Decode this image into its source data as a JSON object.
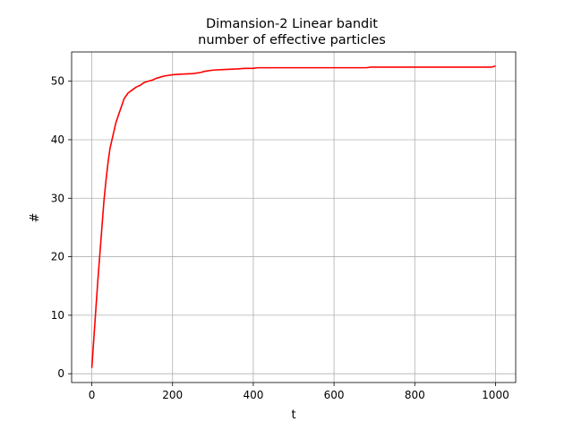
{
  "chart_data": {
    "type": "line",
    "title": "Dimansion-2 Linear bandit",
    "subtitle": "number of effective particles",
    "xlabel": "t",
    "ylabel": "#",
    "xlim": [
      -50,
      1050
    ],
    "ylim": [
      -1.5,
      55
    ],
    "xticks": [
      0,
      200,
      400,
      600,
      800,
      1000
    ],
    "yticks": [
      0,
      10,
      20,
      30,
      40,
      50
    ],
    "grid": true,
    "series": [
      {
        "color": "#ff0000",
        "x": [
          0,
          5,
          10,
          15,
          20,
          25,
          30,
          35,
          40,
          45,
          50,
          60,
          70,
          80,
          90,
          100,
          110,
          120,
          130,
          140,
          150,
          160,
          170,
          180,
          190,
          200,
          220,
          250,
          270,
          280,
          300,
          330,
          360,
          380,
          400,
          410,
          450,
          500,
          550,
          600,
          650,
          680,
          690,
          750,
          800,
          850,
          900,
          950,
          990,
          1000
        ],
        "y": [
          1,
          6,
          11,
          16,
          20.5,
          25,
          29.5,
          33,
          36,
          38.5,
          40,
          43,
          45,
          47,
          48,
          48.5,
          49,
          49.3,
          49.8,
          50,
          50.2,
          50.5,
          50.7,
          50.9,
          51,
          51.1,
          51.2,
          51.3,
          51.5,
          51.7,
          51.9,
          52,
          52.1,
          52.2,
          52.2,
          52.3,
          52.3,
          52.3,
          52.3,
          52.3,
          52.3,
          52.3,
          52.4,
          52.4,
          52.4,
          52.4,
          52.4,
          52.4,
          52.4,
          52.6
        ]
      }
    ]
  }
}
